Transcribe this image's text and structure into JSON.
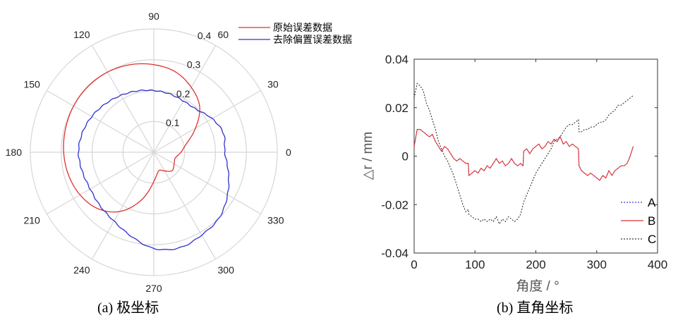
{
  "chart_data": [
    {
      "type": "polar",
      "caption": "(a)  极坐标",
      "angle_ticks": [
        "0",
        "30",
        "60",
        "90",
        "120",
        "150",
        "180",
        "210",
        "240",
        "270",
        "300",
        "330"
      ],
      "radial_ticks": [
        "0.1",
        "0.2",
        "0.3",
        "0.4"
      ],
      "rlim": [
        0,
        0.4
      ],
      "grid": true,
      "legend_position": "top-right",
      "series": [
        {
          "name": "原始误差数据",
          "color": "#e03030",
          "points_theta_deg": [
            0,
            15,
            30,
            45,
            60,
            75,
            90,
            105,
            120,
            135,
            150,
            165,
            180,
            195,
            210,
            225,
            240,
            255,
            270,
            285,
            300,
            315,
            330,
            345,
            360
          ],
          "points_r": [
            0.088,
            0.11,
            0.156,
            0.21,
            0.243,
            0.27,
            0.284,
            0.294,
            0.3,
            0.302,
            0.3,
            0.296,
            0.292,
            0.286,
            0.276,
            0.258,
            0.222,
            0.162,
            0.095,
            0.062,
            0.07,
            0.084,
            0.076,
            0.072,
            0.088
          ]
        },
        {
          "name": "去除偏置误差数据",
          "color": "#3030cc",
          "points_theta_deg": [
            0,
            15,
            30,
            45,
            60,
            75,
            90,
            105,
            120,
            135,
            150,
            165,
            180,
            195,
            210,
            225,
            240,
            255,
            270,
            285,
            300,
            315,
            330,
            345,
            360
          ],
          "points_r": [
            0.23,
            0.234,
            0.218,
            0.196,
            0.192,
            0.196,
            0.2,
            0.206,
            0.213,
            0.222,
            0.232,
            0.24,
            0.244,
            0.24,
            0.238,
            0.246,
            0.258,
            0.282,
            0.312,
            0.321,
            0.31,
            0.3,
            0.276,
            0.25,
            0.23
          ]
        }
      ]
    },
    {
      "type": "line",
      "caption": "(b)  直角坐标",
      "xlabel": "角度 / °",
      "ylabel": "△r / mm",
      "xlim": [
        0,
        400
      ],
      "ylim": [
        -0.04,
        0.04
      ],
      "x_ticks": [
        "0",
        "100",
        "200",
        "300",
        "400"
      ],
      "y_ticks": [
        "0.04",
        "0.02",
        "0",
        "-0.02",
        "-0.04"
      ],
      "grid": false,
      "legend_position": "bottom-right",
      "x": [
        0,
        5,
        10,
        15,
        20,
        25,
        30,
        35,
        40,
        45,
        50,
        55,
        60,
        65,
        70,
        75,
        80,
        85,
        89,
        90,
        95,
        100,
        105,
        110,
        115,
        120,
        125,
        130,
        135,
        140,
        145,
        150,
        155,
        160,
        165,
        170,
        175,
        179,
        180,
        185,
        190,
        195,
        200,
        205,
        210,
        215,
        220,
        225,
        230,
        235,
        240,
        245,
        250,
        255,
        260,
        265,
        270,
        271,
        275,
        280,
        285,
        290,
        295,
        300,
        305,
        310,
        315,
        320,
        325,
        330,
        335,
        340,
        345,
        350,
        355,
        360
      ],
      "series": [
        {
          "name": "A",
          "style": "dotted",
          "color": "#3a3ae0",
          "values": [
            0.004,
            0.011,
            0.011,
            0.01,
            0.009,
            0.008,
            0.009,
            0.006,
            0.004,
            0.002,
            0.004,
            0.003,
            0.001,
            -0.001,
            -0.002,
            -0.001,
            -0.002,
            -0.003,
            -0.003,
            -0.008,
            -0.007,
            -0.006,
            -0.007,
            -0.005,
            -0.006,
            -0.004,
            -0.005,
            -0.003,
            -0.001,
            -0.003,
            -0.002,
            -0.004,
            -0.003,
            -0.001,
            -0.003,
            -0.004,
            -0.003,
            -0.004,
            0.002,
            0.003,
            0.001,
            0.003,
            0.004,
            0.005,
            0.003,
            0.004,
            0.006,
            0.005,
            0.007,
            0.006,
            0.008,
            0.005,
            0.006,
            0.004,
            0.005,
            0.004,
            0.003,
            -0.004,
            -0.006,
            -0.007,
            -0.008,
            -0.007,
            -0.008,
            -0.009,
            -0.01,
            -0.008,
            -0.009,
            -0.006,
            -0.008,
            -0.006,
            -0.005,
            -0.004,
            -0.004,
            -0.003,
            0.0,
            0.004
          ]
        },
        {
          "name": "B",
          "style": "solid",
          "color": "#e03030",
          "values": [
            0.004,
            0.011,
            0.011,
            0.01,
            0.009,
            0.008,
            0.009,
            0.006,
            0.004,
            0.002,
            0.004,
            0.003,
            0.001,
            -0.001,
            -0.002,
            -0.001,
            -0.002,
            -0.003,
            -0.003,
            -0.008,
            -0.007,
            -0.006,
            -0.007,
            -0.005,
            -0.006,
            -0.004,
            -0.005,
            -0.003,
            -0.001,
            -0.003,
            -0.002,
            -0.004,
            -0.003,
            -0.001,
            -0.003,
            -0.004,
            -0.003,
            -0.004,
            0.002,
            0.003,
            0.001,
            0.003,
            0.004,
            0.005,
            0.003,
            0.004,
            0.006,
            0.005,
            0.007,
            0.006,
            0.008,
            0.005,
            0.006,
            0.004,
            0.005,
            0.004,
            0.003,
            -0.004,
            -0.006,
            -0.007,
            -0.008,
            -0.007,
            -0.008,
            -0.009,
            -0.01,
            -0.008,
            -0.009,
            -0.006,
            -0.008,
            -0.006,
            -0.005,
            -0.004,
            -0.004,
            -0.003,
            0.0,
            0.004
          ]
        },
        {
          "name": "C",
          "style": "dotted",
          "color": "#333333",
          "values": [
            0.024,
            0.03,
            0.029,
            0.027,
            0.022,
            0.019,
            0.015,
            0.011,
            0.006,
            0.003,
            0.0,
            -0.002,
            -0.005,
            -0.008,
            -0.012,
            -0.016,
            -0.02,
            -0.023,
            -0.022,
            -0.024,
            -0.025,
            -0.026,
            -0.026,
            -0.027,
            -0.026,
            -0.027,
            -0.026,
            -0.027,
            -0.025,
            -0.028,
            -0.026,
            -0.027,
            -0.025,
            -0.026,
            -0.027,
            -0.026,
            -0.024,
            -0.02,
            -0.019,
            -0.016,
            -0.013,
            -0.01,
            -0.007,
            -0.005,
            -0.003,
            -0.001,
            0.001,
            0.003,
            0.006,
            0.007,
            0.008,
            0.01,
            0.012,
            0.013,
            0.013,
            0.014,
            0.015,
            0.01,
            0.01,
            0.011,
            0.011,
            0.012,
            0.012,
            0.013,
            0.014,
            0.014,
            0.015,
            0.017,
            0.018,
            0.019,
            0.021,
            0.021,
            0.022,
            0.023,
            0.024,
            0.025
          ]
        }
      ]
    }
  ]
}
